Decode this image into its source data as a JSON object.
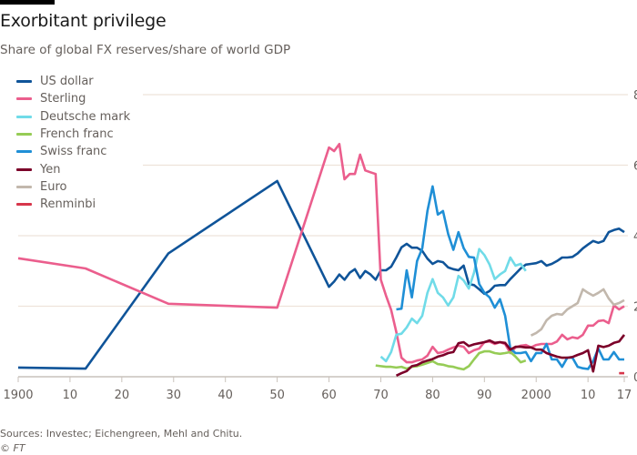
{
  "header": {
    "title": "Exorbitant privilege",
    "subtitle": "Share of global FX reserves/share of world GDP"
  },
  "footer": {
    "source": "Sources: Investec; Eichengreen, Mehl and Chitu.",
    "credit": "© FT"
  },
  "chart_data": {
    "type": "line",
    "title": "Exorbitant privilege",
    "subtitle": "Share of global FX reserves/share of world GDP",
    "xlabel": "",
    "ylabel": "",
    "xlim": [
      1900,
      2017
    ],
    "ylim": [
      0,
      8
    ],
    "grid": true,
    "legend_position": "top-left",
    "x_ticks": [
      1900,
      1910,
      1920,
      1930,
      1940,
      1950,
      1960,
      1970,
      1980,
      1990,
      2000,
      2010,
      2017
    ],
    "x_tick_labels": [
      "1900",
      "10",
      "20",
      "30",
      "40",
      "50",
      "60",
      "70",
      "80",
      "90",
      "2000",
      "10",
      "17"
    ],
    "y_ticks": [
      0,
      2,
      4,
      6,
      8
    ],
    "y_tick_labels": [
      "0",
      "2",
      "4",
      "6",
      "8"
    ],
    "series": [
      {
        "name": "US dollar",
        "color": "#0f5499",
        "x": [
          1900,
          1913,
          1929,
          1950,
          1960,
          1961,
          1962,
          1963,
          1964,
          1965,
          1966,
          1967,
          1968,
          1969,
          1970,
          1971,
          1972,
          1973,
          1974,
          1975,
          1976,
          1977,
          1978,
          1979,
          1980,
          1981,
          1982,
          1983,
          1984,
          1985,
          1986,
          1987,
          1988,
          1989,
          1990,
          1991,
          1992,
          1993,
          1994,
          1995,
          1996,
          1997,
          1998,
          1999,
          2000,
          2001,
          2002,
          2003,
          2004,
          2005,
          2006,
          2007,
          2008,
          2009,
          2010,
          2011,
          2012,
          2013,
          2014,
          2015,
          2016,
          2017
        ],
        "y": [
          0.26,
          0.23,
          3.5,
          5.55,
          2.55,
          2.7,
          2.9,
          2.75,
          2.95,
          3.05,
          2.8,
          3.0,
          2.9,
          2.75,
          3.02,
          3.02,
          3.12,
          3.38,
          3.67,
          3.77,
          3.66,
          3.66,
          3.57,
          3.35,
          3.2,
          3.28,
          3.25,
          3.1,
          3.05,
          3.02,
          3.15,
          2.63,
          2.6,
          2.48,
          2.35,
          2.43,
          2.58,
          2.6,
          2.6,
          2.77,
          2.92,
          3.07,
          3.18,
          3.2,
          3.22,
          3.28,
          3.15,
          3.2,
          3.28,
          3.38,
          3.38,
          3.4,
          3.5,
          3.64,
          3.75,
          3.85,
          3.8,
          3.85,
          4.1,
          4.16,
          4.2,
          4.1
        ]
      },
      {
        "name": "Sterling",
        "color": "#eb5e8d",
        "x": [
          1900,
          1913,
          1929,
          1950,
          1960,
          1961,
          1962,
          1963,
          1964,
          1965,
          1966,
          1967,
          1968,
          1969,
          1970,
          1971,
          1972,
          1973,
          1974,
          1975,
          1976,
          1977,
          1978,
          1979,
          1980,
          1981,
          1982,
          1983,
          1984,
          1985,
          1986,
          1987,
          1988,
          1989,
          1990,
          1991,
          1992,
          1993,
          1994,
          1995,
          1996,
          1997,
          1998,
          1999,
          2000,
          2001,
          2002,
          2003,
          2004,
          2005,
          2006,
          2007,
          2008,
          2009,
          2010,
          2011,
          2012,
          2013,
          2014,
          2015,
          2016,
          2017
        ],
        "y": [
          3.36,
          3.07,
          2.07,
          1.96,
          6.5,
          6.4,
          6.6,
          5.6,
          5.75,
          5.75,
          6.3,
          5.85,
          5.8,
          5.75,
          2.75,
          2.3,
          1.9,
          1.27,
          0.54,
          0.41,
          0.41,
          0.46,
          0.49,
          0.6,
          0.85,
          0.67,
          0.7,
          0.77,
          0.83,
          0.88,
          0.85,
          0.67,
          0.75,
          0.8,
          0.98,
          1.0,
          0.93,
          0.98,
          0.93,
          0.67,
          0.83,
          0.88,
          0.9,
          0.83,
          0.9,
          0.93,
          0.93,
          0.93,
          1.0,
          1.19,
          1.06,
          1.12,
          1.09,
          1.19,
          1.45,
          1.45,
          1.58,
          1.6,
          1.52,
          2.02,
          1.91,
          2.0
        ]
      },
      {
        "name": "Deutsche mark",
        "color": "#70dbe8",
        "x": [
          1970,
          1971,
          1972,
          1973,
          1974,
          1975,
          1976,
          1977,
          1978,
          1979,
          1980,
          1981,
          1982,
          1983,
          1984,
          1985,
          1986,
          1987,
          1988,
          1989,
          1990,
          1991,
          1992,
          1993,
          1994,
          1995,
          1996,
          1997,
          1998
        ],
        "y": [
          0.57,
          0.44,
          0.7,
          1.19,
          1.22,
          1.4,
          1.65,
          1.52,
          1.73,
          2.38,
          2.77,
          2.38,
          2.25,
          2.02,
          2.25,
          2.86,
          2.73,
          2.5,
          2.95,
          3.62,
          3.45,
          3.18,
          2.77,
          2.9,
          3.0,
          3.38,
          3.15,
          3.2,
          3.0
        ]
      },
      {
        "name": "French franc",
        "color": "#96cc56",
        "x": [
          1969,
          1970,
          1971,
          1972,
          1973,
          1974,
          1975,
          1976,
          1977,
          1978,
          1979,
          1980,
          1981,
          1982,
          1983,
          1984,
          1985,
          1986,
          1987,
          1988,
          1989,
          1990,
          1991,
          1992,
          1993,
          1994,
          1995,
          1996,
          1997,
          1998
        ],
        "y": [
          0.32,
          0.3,
          0.28,
          0.28,
          0.26,
          0.28,
          0.23,
          0.28,
          0.3,
          0.34,
          0.39,
          0.44,
          0.36,
          0.34,
          0.3,
          0.28,
          0.24,
          0.21,
          0.3,
          0.49,
          0.67,
          0.72,
          0.72,
          0.67,
          0.65,
          0.67,
          0.7,
          0.57,
          0.41,
          0.46
        ]
      },
      {
        "name": "Swiss franc",
        "color": "#1f8fd6",
        "x": [
          1973,
          1974,
          1975,
          1976,
          1977,
          1978,
          1979,
          1980,
          1981,
          1982,
          1983,
          1984,
          1985,
          1986,
          1987,
          1988,
          1989,
          1990,
          1991,
          1992,
          1993,
          1994,
          1995,
          1996,
          1997,
          1998,
          1999,
          2000,
          2001,
          2002,
          2003,
          2004,
          2005,
          2006,
          2007,
          2008,
          2009,
          2010,
          2011,
          2012,
          2013,
          2014,
          2015,
          2016,
          2017
        ],
        "y": [
          1.91,
          1.93,
          3.02,
          2.25,
          3.28,
          3.64,
          4.7,
          5.4,
          4.6,
          4.7,
          4.05,
          3.6,
          4.1,
          3.65,
          3.4,
          3.38,
          2.63,
          2.38,
          2.25,
          1.96,
          2.2,
          1.73,
          0.8,
          0.67,
          0.67,
          0.7,
          0.44,
          0.67,
          0.67,
          0.93,
          0.49,
          0.49,
          0.28,
          0.54,
          0.54,
          0.28,
          0.24,
          0.22,
          0.44,
          0.8,
          0.49,
          0.49,
          0.7,
          0.49,
          0.49
        ]
      },
      {
        "name": "Yen",
        "color": "#7b0029",
        "x": [
          1973,
          1974,
          1975,
          1976,
          1977,
          1978,
          1979,
          1980,
          1981,
          1982,
          1983,
          1984,
          1985,
          1986,
          1987,
          1988,
          1989,
          1990,
          1991,
          1992,
          1993,
          1994,
          1995,
          1996,
          1997,
          1998,
          1999,
          2000,
          2001,
          2002,
          2003,
          2004,
          2005,
          2006,
          2007,
          2008,
          2009,
          2010,
          2011,
          2012,
          2013,
          2014,
          2015,
          2016,
          2017
        ],
        "y": [
          0.03,
          0.1,
          0.16,
          0.3,
          0.33,
          0.41,
          0.46,
          0.5,
          0.57,
          0.61,
          0.67,
          0.7,
          0.95,
          0.98,
          0.87,
          0.92,
          0.95,
          0.98,
          1.03,
          0.96,
          0.98,
          0.96,
          0.77,
          0.85,
          0.85,
          0.83,
          0.83,
          0.77,
          0.77,
          0.67,
          0.62,
          0.57,
          0.54,
          0.54,
          0.56,
          0.62,
          0.67,
          0.75,
          0.15,
          0.88,
          0.84,
          0.88,
          0.96,
          1.0,
          1.19
        ]
      },
      {
        "name": "Euro",
        "color": "#c2b8ad",
        "x": [
          1999,
          2000,
          2001,
          2002,
          2003,
          2004,
          2005,
          2006,
          2007,
          2008,
          2009,
          2010,
          2011,
          2012,
          2013,
          2014,
          2015,
          2016,
          2017
        ],
        "y": [
          1.17,
          1.24,
          1.35,
          1.6,
          1.73,
          1.78,
          1.76,
          1.91,
          2.0,
          2.09,
          2.48,
          2.38,
          2.3,
          2.38,
          2.48,
          2.22,
          2.04,
          2.09,
          2.17
        ]
      },
      {
        "name": "Renminbi",
        "color": "#d7364b",
        "x": [
          2016,
          2017
        ],
        "y": [
          0.1,
          0.1
        ]
      }
    ]
  }
}
